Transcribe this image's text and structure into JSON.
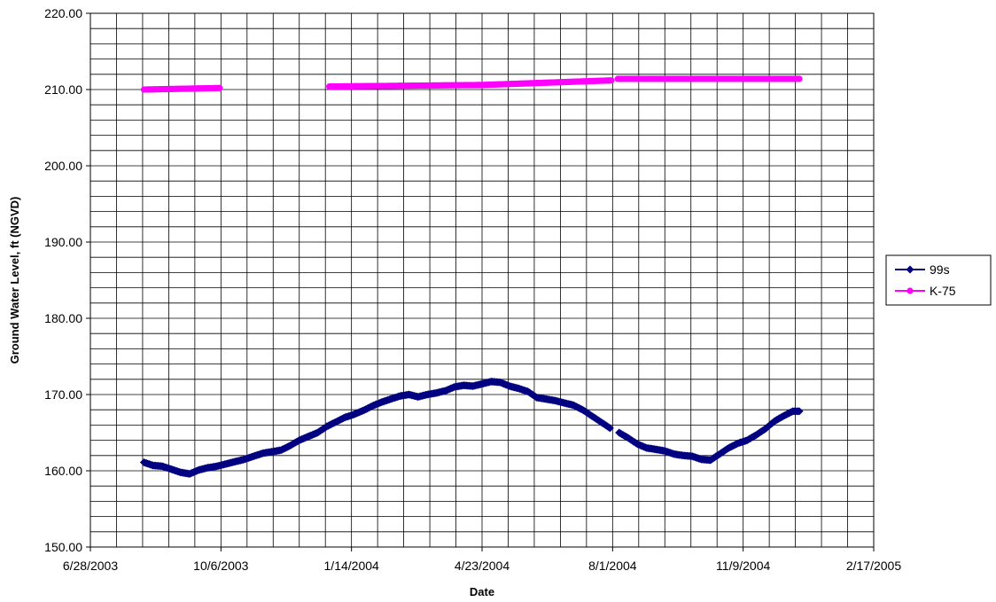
{
  "chart_data": {
    "type": "line",
    "title": "",
    "xlabel": "Date",
    "ylabel": "Ground Water Level, ft (NGVD)",
    "x_type": "date",
    "xlim": [
      "2003-06-28",
      "2005-02-17"
    ],
    "x_tick_labels": [
      "6/28/2003",
      "10/6/2003",
      "1/14/2004",
      "4/23/2004",
      "8/1/2004",
      "11/9/2004",
      "2/17/2005"
    ],
    "x_tick_dates": [
      "2003-06-28",
      "2003-10-06",
      "2004-01-14",
      "2004-04-23",
      "2004-08-01",
      "2004-11-09",
      "2005-02-17"
    ],
    "ylim": [
      150,
      220
    ],
    "y_tick_labels": [
      "150.00",
      "160.00",
      "170.00",
      "180.00",
      "190.00",
      "200.00",
      "210.00",
      "220.00"
    ],
    "y_tick_values": [
      150,
      160,
      170,
      180,
      190,
      200,
      210,
      220
    ],
    "grid": true,
    "legend_position": "right",
    "series": [
      {
        "name": "99s",
        "color": "#000080",
        "marker": "diamond",
        "segments": [
          [
            [
              "2003-08-08",
              161.1
            ],
            [
              "2003-08-15",
              160.7
            ],
            [
              "2003-08-22",
              160.6
            ],
            [
              "2003-08-29",
              160.2
            ],
            [
              "2003-09-05",
              159.8
            ],
            [
              "2003-09-12",
              159.6
            ],
            [
              "2003-09-19",
              160.1
            ],
            [
              "2003-09-26",
              160.4
            ],
            [
              "2003-10-03",
              160.6
            ],
            [
              "2003-10-10",
              160.9
            ],
            [
              "2003-10-17",
              161.2
            ],
            [
              "2003-10-24",
              161.5
            ],
            [
              "2003-10-31",
              161.9
            ],
            [
              "2003-11-07",
              162.3
            ],
            [
              "2003-11-14",
              162.5
            ],
            [
              "2003-11-21",
              162.7
            ],
            [
              "2003-11-28",
              163.3
            ],
            [
              "2003-12-05",
              164.0
            ],
            [
              "2003-12-12",
              164.5
            ],
            [
              "2003-12-19",
              165.0
            ],
            [
              "2003-12-26",
              165.8
            ],
            [
              "2004-01-02",
              166.4
            ],
            [
              "2004-01-09",
              167.0
            ],
            [
              "2004-01-16",
              167.4
            ],
            [
              "2004-01-23",
              167.9
            ],
            [
              "2004-01-30",
              168.5
            ],
            [
              "2004-02-06",
              169.0
            ],
            [
              "2004-02-13",
              169.4
            ],
            [
              "2004-02-20",
              169.8
            ],
            [
              "2004-02-27",
              170.0
            ],
            [
              "2004-03-05",
              169.7
            ],
            [
              "2004-03-12",
              170.0
            ],
            [
              "2004-03-19",
              170.2
            ],
            [
              "2004-03-26",
              170.5
            ],
            [
              "2004-04-02",
              171.0
            ],
            [
              "2004-04-09",
              171.2
            ],
            [
              "2004-04-16",
              171.1
            ],
            [
              "2004-04-23",
              171.4
            ],
            [
              "2004-04-30",
              171.7
            ],
            [
              "2004-05-07",
              171.6
            ],
            [
              "2004-05-14",
              171.1
            ],
            [
              "2004-05-21",
              170.8
            ],
            [
              "2004-05-28",
              170.4
            ],
            [
              "2004-06-04",
              169.6
            ],
            [
              "2004-06-11",
              169.4
            ],
            [
              "2004-06-18",
              169.2
            ],
            [
              "2004-06-25",
              168.9
            ],
            [
              "2004-07-02",
              168.6
            ],
            [
              "2004-07-09",
              168.0
            ],
            [
              "2004-07-16",
              167.2
            ],
            [
              "2004-07-23",
              166.4
            ],
            [
              "2004-07-30",
              165.6
            ]
          ],
          [
            [
              "2004-08-06",
              165.0
            ],
            [
              "2004-08-13",
              164.3
            ],
            [
              "2004-08-20",
              163.5
            ],
            [
              "2004-08-27",
              163.0
            ],
            [
              "2004-09-03",
              162.8
            ],
            [
              "2004-09-10",
              162.6
            ],
            [
              "2004-09-17",
              162.2
            ],
            [
              "2004-09-24",
              162.0
            ],
            [
              "2004-10-01",
              161.9
            ],
            [
              "2004-10-08",
              161.5
            ],
            [
              "2004-10-15",
              161.4
            ],
            [
              "2004-10-22",
              162.2
            ],
            [
              "2004-10-29",
              163.0
            ],
            [
              "2004-11-05",
              163.6
            ],
            [
              "2004-11-12",
              164.0
            ],
            [
              "2004-11-19",
              164.7
            ],
            [
              "2004-11-26",
              165.5
            ],
            [
              "2004-12-03",
              166.5
            ],
            [
              "2004-12-10",
              167.2
            ],
            [
              "2004-12-17",
              167.8
            ],
            [
              "2004-12-22",
              167.8
            ]
          ]
        ]
      },
      {
        "name": "K-75",
        "color": "#FF00FF",
        "marker": "circle",
        "segments": [
          [
            [
              "2003-08-08",
              210.0
            ],
            [
              "2003-10-05",
              210.2
            ]
          ],
          [
            [
              "2003-12-28",
              210.4
            ],
            [
              "2004-04-23",
              210.6
            ],
            [
              "2004-07-31",
              211.2
            ]
          ],
          [
            [
              "2004-08-05",
              211.4
            ],
            [
              "2004-12-22",
              211.4
            ]
          ]
        ]
      }
    ]
  }
}
